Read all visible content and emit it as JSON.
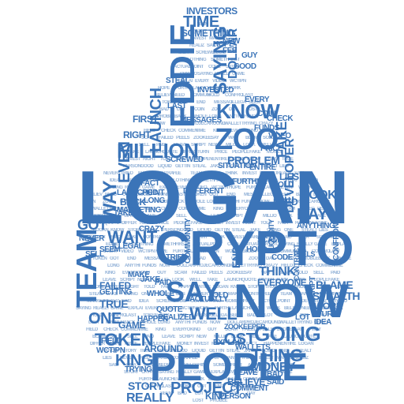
{
  "image": {
    "kind": "word cloud shaped like a water drop",
    "text_color": "#3b74b8",
    "background": "#ffffff"
  },
  "words": [
    "LOGAN",
    "CRYPTO",
    "NOW",
    "PEOPLE",
    "EDDIE",
    "ZOO",
    "MILLION",
    "TEAM",
    "TOKEN",
    "SAY",
    "GOING",
    "LAUNCH",
    "TIME",
    "KNOW",
    "SAYING",
    "DOLLAR",
    "FAKE",
    "DEVELOPER",
    "DAY",
    "LOOK",
    "WANT",
    "GOT",
    "WAY",
    "ONE",
    "EVEN",
    "KING",
    "STORY",
    "REALLY",
    "PROJECT",
    "MONEY",
    "THING",
    "LOST",
    "WELL",
    "THINK",
    "END",
    "BLAME",
    "STEALTH",
    "WORK",
    "EVERYONE",
    "TRUE",
    "GAME",
    "AROUND",
    "INVESTORS",
    "SOMETHING",
    "PROBLEM",
    "TAKE",
    "INVESTED",
    "MESSAGES",
    "SOLD",
    "LIES",
    "BELIEVE",
    "KIND",
    "PERSON",
    "EXPLAIN",
    "WALLETS",
    "RIGHT",
    "FIRST",
    "BACK",
    "LAUNCHED",
    "MARKETING",
    "ILLEGAL",
    "SELL",
    "NEVER",
    "NEED",
    "GUY",
    "GOOD",
    "EVERY",
    "TRYING",
    "TOLD",
    "ACTUALLY",
    "WHOLE",
    "QUOTE",
    "REALIZED",
    "SEEM",
    "PAID",
    "TRIED",
    "COMMUNITY",
    "SCAM",
    "LIQUIDITY",
    "VIDEO",
    "CRAZY",
    "FACT",
    "POINT",
    "LONG",
    "DIFFERENT",
    "SAID",
    "BAD",
    "LEAVE",
    "MAKE",
    "HOLD",
    "FAILED",
    "GETTING",
    "WCTIPN",
    "FIELD",
    "HAPPEN",
    "CODE",
    "ANYTHING",
    "TURN",
    "IDEA",
    "LOT",
    "SCRIPT",
    "CONTRACT",
    "CONFRONT",
    "PEELS",
    "STEAL",
    "HOPE",
    "CHECK",
    "ENTIRE",
    "SITUATION",
    "FUNDS",
    "PRICE",
    "SCREWED",
    "COIN",
    "NEW",
    "FEE",
    "LAST",
    "ZOOKEEPER",
    "JAKE",
    "FURTHER",
    "COMMENT"
  ]
}
